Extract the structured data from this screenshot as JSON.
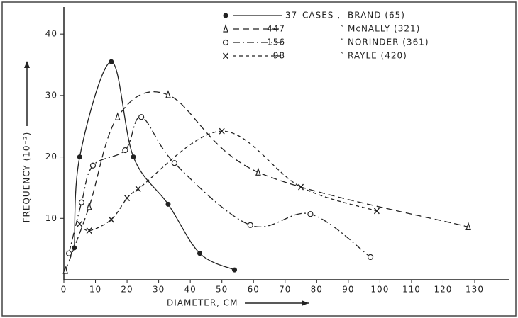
{
  "chart_data": {
    "type": "line",
    "x_label": "DIAMETER, CM",
    "y_label": "FREQUENCY (10⁻²)",
    "xlim": [
      0,
      141
    ],
    "ylim": [
      0,
      44.4
    ],
    "xticks": [
      0,
      10,
      20,
      30,
      40,
      50,
      60,
      70,
      80,
      90,
      100,
      110,
      120,
      130
    ],
    "yticks": [
      10,
      20,
      30,
      40
    ],
    "series": [
      {
        "name": "BRAND (65)",
        "count": "37",
        "note": "CASES ,",
        "color": "#222",
        "marker": "dot",
        "dash": "none",
        "x": [
          3.3,
          5,
          15,
          22,
          33,
          43,
          54
        ],
        "values": [
          5.2,
          20,
          35.5,
          20,
          12.3,
          4.3,
          1.6
        ]
      },
      {
        "name": "McNALLY (321)",
        "count": "447",
        "note": "″",
        "color": "#222",
        "marker": "triangle",
        "dash": "9 5",
        "x": [
          0.5,
          8,
          17,
          33,
          61.5,
          128
        ],
        "values": [
          1.5,
          11.9,
          26.5,
          30.1,
          17.5,
          8.6
        ]
      },
      {
        "name": "NORINDER (361)",
        "count": "156",
        "note": "″",
        "color": "#222",
        "marker": "circle",
        "dash": "10 4 2 4",
        "x": [
          1.6,
          5.6,
          9.2,
          19.4,
          24.5,
          35,
          59,
          78,
          97
        ],
        "values": [
          4.3,
          12.6,
          18.6,
          21.1,
          26.5,
          19,
          8.9,
          10.7,
          3.7
        ]
      },
      {
        "name": "RAYLE (420)",
        "count": "98",
        "note": "″",
        "color": "#222",
        "marker": "cross",
        "dash": "5 4",
        "x": [
          5,
          8,
          15,
          20,
          23.5,
          50,
          75,
          99
        ],
        "values": [
          9.1,
          8,
          9.8,
          13.3,
          14.8,
          24.2,
          15.1,
          11.2
        ]
      }
    ]
  }
}
